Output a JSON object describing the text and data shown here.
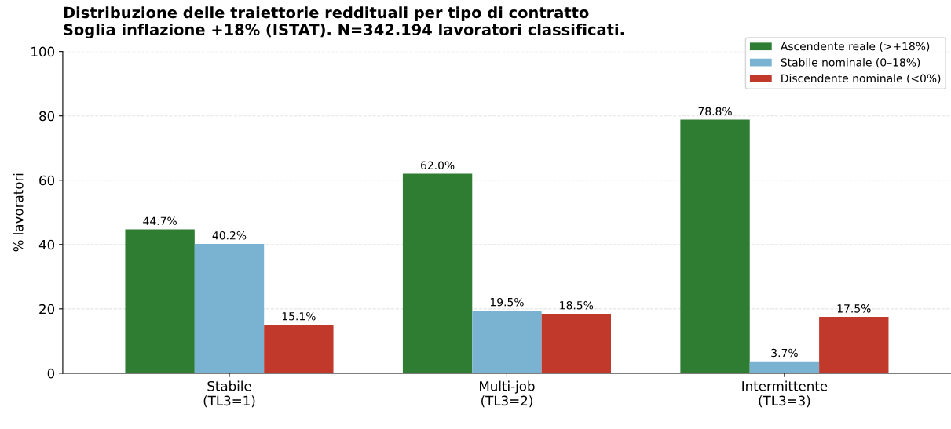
{
  "chart_data": {
    "type": "bar",
    "title": "Distribuzione delle traiettorie reddituali per tipo di contratto\nSoglia inflazione +18% (ISTAT). N=342.194 lavoratori classificati.",
    "ylabel": "% lavoratori",
    "categories": [
      "Stabile\n(TL3=1)",
      "Multi-job\n(TL3=2)",
      "Intermittente\n(TL3=3)"
    ],
    "series": [
      {
        "name": "Ascendente reale (>+18%)",
        "color": "#2e7d32",
        "values": [
          44.7,
          62.0,
          78.8
        ],
        "value_labels": [
          "44.7%",
          "62.0%",
          "78.8%"
        ]
      },
      {
        "name": "Stabile nominale (0–18%)",
        "color": "#7ab3d1",
        "values": [
          40.2,
          19.5,
          3.7
        ],
        "value_labels": [
          "40.2%",
          "19.5%",
          "3.7%"
        ]
      },
      {
        "name": "Discendente nominale (<0%)",
        "color": "#c0392b",
        "values": [
          15.1,
          18.5,
          17.5
        ],
        "value_labels": [
          "15.1%",
          "18.5%",
          "17.5%"
        ]
      }
    ],
    "ylim": [
      0,
      100
    ],
    "yticks": [
      0,
      20,
      40,
      60,
      80,
      100
    ],
    "grid": "y",
    "legend": "top right"
  }
}
